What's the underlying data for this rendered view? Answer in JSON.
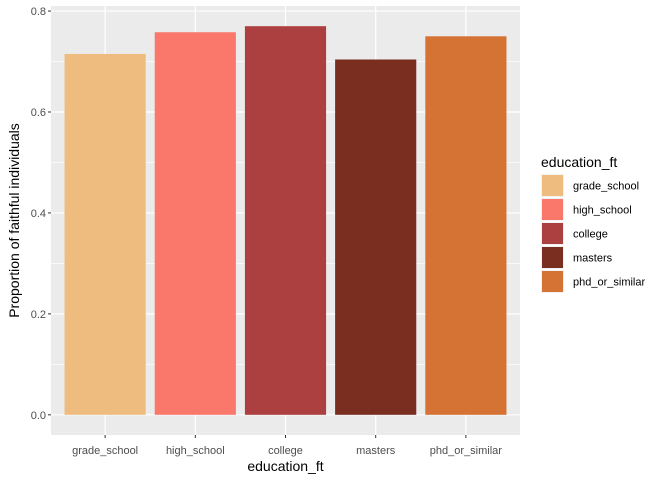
{
  "chart_data": {
    "type": "bar",
    "categories": [
      "grade_school",
      "high_school",
      "college",
      "masters",
      "phd_or_similar"
    ],
    "values": [
      0.715,
      0.758,
      0.77,
      0.704,
      0.75
    ],
    "colors": [
      "#EFBC7F",
      "#FA776C",
      "#AC3F3F",
      "#7A2E1F",
      "#D57334"
    ],
    "xlabel": "education_ft",
    "ylabel": "Proportion of faithful individuals",
    "ylim": [
      -0.04,
      0.81
    ],
    "yticks": [
      0.0,
      0.2,
      0.4,
      0.6,
      0.8
    ],
    "ytick_labels": [
      "0.0",
      "0.2",
      "0.4",
      "0.6",
      "0.8"
    ],
    "grid": true,
    "legend": {
      "title": "education_ft",
      "placement": "right",
      "entries": [
        "grade_school",
        "high_school",
        "college",
        "masters",
        "phd_or_similar"
      ]
    },
    "panel_background": "#EBEBEB",
    "grid_color": "#FFFFFF"
  }
}
